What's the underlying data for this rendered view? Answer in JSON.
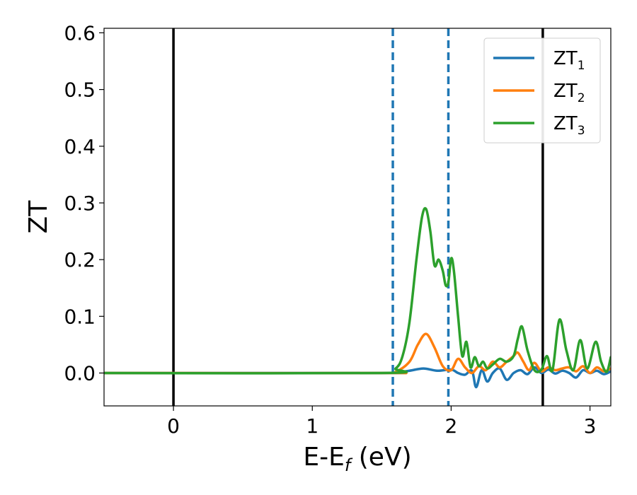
{
  "chart_data": {
    "type": "line",
    "xlabel_main": "E-E",
    "xlabel_sub": "f",
    "xlabel_unit": " (eV)",
    "ylabel": "ZT",
    "xlim": [
      -0.5,
      3.15
    ],
    "ylim": [
      -0.058,
      0.608
    ],
    "xticks": [
      0,
      1,
      2,
      3
    ],
    "yticks": [
      0.0,
      0.1,
      0.2,
      0.3,
      0.4,
      0.5,
      0.6
    ],
    "ytick_labels": [
      "0.0",
      "0.1",
      "0.2",
      "0.3",
      "0.4",
      "0.5",
      "0.6"
    ],
    "grid": false,
    "legend_placement": "top-right",
    "vlines": [
      {
        "x": 0.0,
        "style": "solid",
        "color": "#000000"
      },
      {
        "x": 2.66,
        "style": "solid",
        "color": "#000000"
      },
      {
        "x": 1.58,
        "style": "dashed",
        "color": "#1f77b4"
      },
      {
        "x": 1.98,
        "style": "dashed",
        "color": "#1f77b4"
      }
    ],
    "series": [
      {
        "name": "ZT",
        "sub": "1",
        "color": "#1f77b4",
        "x": [
          -0.5,
          1.5,
          1.6,
          1.7,
          1.8,
          1.9,
          2.0,
          2.05,
          2.1,
          2.15,
          2.18,
          2.22,
          2.26,
          2.3,
          2.35,
          2.4,
          2.45,
          2.5,
          2.55,
          2.6,
          2.65,
          2.7,
          2.75,
          2.8,
          2.85,
          2.9,
          2.95,
          3.0,
          3.05,
          3.1,
          3.15
        ],
        "y": [
          0.0,
          0.0,
          0.001,
          0.004,
          0.008,
          0.004,
          0.006,
          0.0,
          -0.003,
          0.004,
          -0.025,
          0.005,
          -0.015,
          0.0,
          0.008,
          -0.012,
          0.0,
          0.005,
          -0.002,
          0.01,
          0.0,
          0.006,
          -0.001,
          0.004,
          0.0,
          -0.008,
          0.005,
          0.0,
          0.004,
          -0.002,
          0.003
        ]
      },
      {
        "name": "ZT",
        "sub": "2",
        "color": "#ff7f0e",
        "x": [
          -0.5,
          1.5,
          1.6,
          1.7,
          1.76,
          1.82,
          1.88,
          1.94,
          2.0,
          2.05,
          2.1,
          2.15,
          2.2,
          2.25,
          2.3,
          2.35,
          2.4,
          2.45,
          2.48,
          2.52,
          2.56,
          2.6,
          2.65,
          2.7,
          2.75,
          2.8,
          2.85,
          2.9,
          2.95,
          3.0,
          3.05,
          3.1,
          3.15
        ],
        "y": [
          0.0,
          0.0,
          0.002,
          0.02,
          0.05,
          0.069,
          0.045,
          0.012,
          0.005,
          0.025,
          0.01,
          0.0,
          0.012,
          0.005,
          0.02,
          0.01,
          0.02,
          0.03,
          0.036,
          0.02,
          0.005,
          0.018,
          0.003,
          0.01,
          0.005,
          0.008,
          0.01,
          0.003,
          0.012,
          0.0,
          0.01,
          0.003,
          0.008
        ]
      },
      {
        "name": "ZT",
        "sub": "3",
        "color": "#2ca02c",
        "x": [
          -0.5,
          1.5,
          1.6,
          1.65,
          1.7,
          1.75,
          1.79,
          1.82,
          1.85,
          1.88,
          1.91,
          1.94,
          1.96,
          1.98,
          2.0,
          2.02,
          2.05,
          2.08,
          2.11,
          2.14,
          2.17,
          2.2,
          2.23,
          2.26,
          2.3,
          2.35,
          2.4,
          2.45,
          2.48,
          2.51,
          2.55,
          2.6,
          2.65,
          2.69,
          2.73,
          2.78,
          2.83,
          2.88,
          2.93,
          2.98,
          3.04,
          3.08,
          3.12,
          3.15
        ],
        "y": [
          0.0,
          0.0,
          0.008,
          0.03,
          0.09,
          0.2,
          0.275,
          0.289,
          0.25,
          0.19,
          0.2,
          0.18,
          0.155,
          0.16,
          0.202,
          0.18,
          0.1,
          0.03,
          0.055,
          0.01,
          0.028,
          0.012,
          0.02,
          0.008,
          0.015,
          0.025,
          0.02,
          0.03,
          0.06,
          0.082,
          0.04,
          0.005,
          0.006,
          0.03,
          0.005,
          0.094,
          0.04,
          0.005,
          0.058,
          0.008,
          0.055,
          0.02,
          0.002,
          0.028
        ]
      }
    ]
  }
}
